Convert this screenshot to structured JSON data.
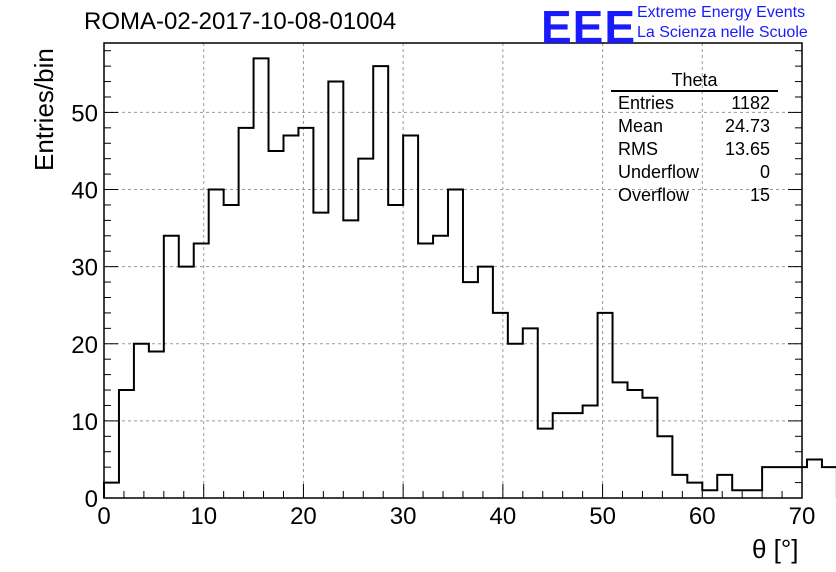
{
  "header": {
    "title": "ROMA-02-2017-10-08-01004",
    "logo_mark": "EEE",
    "logo_line1": "Extreme Energy Events",
    "logo_line2": "La Scienza nelle Scuole",
    "logo_color": "#1a1aff"
  },
  "stats_box": {
    "title": "Theta",
    "rows": [
      {
        "label": "Entries",
        "value": "1182"
      },
      {
        "label": "Mean",
        "value": "24.73"
      },
      {
        "label": "RMS",
        "value": "13.65"
      },
      {
        "label": "Underflow",
        "value": "0"
      },
      {
        "label": "Overflow",
        "value": "15"
      }
    ]
  },
  "chart_data": {
    "type": "bar",
    "histogram": true,
    "title": "ROMA-02-2017-10-08-01004",
    "xlabel": "θ [°]",
    "ylabel": "Entries/bin",
    "xlim": [
      0,
      70
    ],
    "ylim": [
      0,
      59
    ],
    "grid": true,
    "bin_edges_start": 0,
    "bin_width": 1.5,
    "values": [
      2,
      14,
      20,
      19,
      34,
      30,
      33,
      40,
      38,
      48,
      57,
      45,
      47,
      48,
      37,
      54,
      36,
      44,
      56,
      38,
      47,
      33,
      34,
      40,
      28,
      30,
      24,
      20,
      22,
      9,
      11,
      11,
      12,
      24,
      15,
      14,
      13,
      8,
      3,
      2,
      1,
      3,
      1,
      1,
      4,
      4,
      4,
      5,
      4
    ],
    "x_ticks": [
      0,
      10,
      20,
      30,
      40,
      50,
      60,
      70
    ],
    "y_ticks": [
      0,
      10,
      20,
      30,
      40,
      50
    ],
    "line_color": "#000000"
  }
}
